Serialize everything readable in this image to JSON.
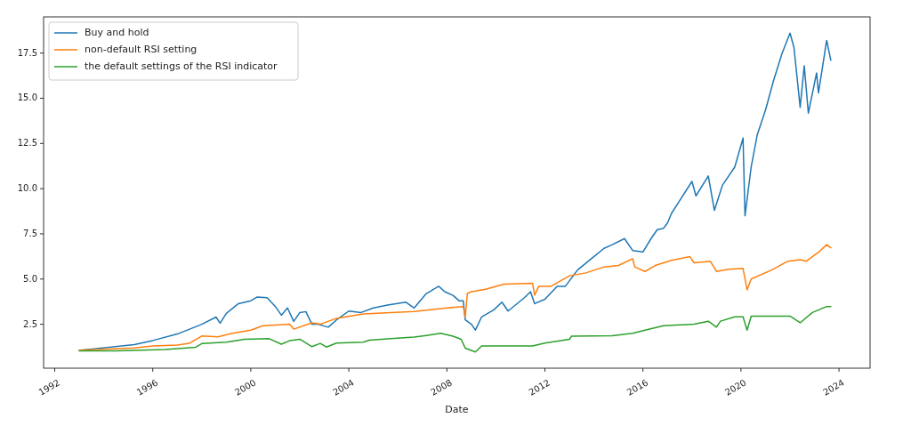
{
  "chart_data": {
    "type": "line",
    "xlabel": "Date",
    "legend": "top left",
    "grid": false,
    "line_style": "solid",
    "xlim": [
      "1991-07-19",
      "2025-04-08"
    ],
    "xticks": [
      "1992",
      "1996",
      "2000",
      "2004",
      "2008",
      "2012",
      "2016",
      "2020",
      "2024"
    ],
    "ylim": [
      0.07,
      19.5
    ],
    "yticks": [
      {
        "value": 2.5,
        "label": "2.5"
      },
      {
        "value": 5,
        "label": "5.0"
      },
      {
        "value": 7.5,
        "label": "7.5"
      },
      {
        "value": 10,
        "label": "10.0"
      },
      {
        "value": 12.5,
        "label": "12.5"
      },
      {
        "value": 15,
        "label": "15.0"
      },
      {
        "value": 17.5,
        "label": "17.5"
      }
    ],
    "series": [
      {
        "name": "Buy and hold",
        "color": "#1f77b4",
        "x": [
          "1993-01",
          "1995-04",
          "1996-01",
          "1997-01",
          "1998-01",
          "1998-08",
          "1998-10",
          "1999-01",
          "1999-07",
          "2000-01",
          "2000-04",
          "2000-09",
          "2001-01",
          "2001-04",
          "2001-07",
          "2001-10",
          "2002-01",
          "2002-04",
          "2002-07",
          "2002-10",
          "2003-03",
          "2003-07",
          "2004-01",
          "2004-07",
          "2005-01",
          "2005-08",
          "2006-05",
          "2006-09",
          "2007-03",
          "2007-09",
          "2007-12",
          "2008-04",
          "2008-07",
          "2008-09",
          "2008-10",
          "2009-01",
          "2009-03",
          "2009-06",
          "2009-12",
          "2010-04",
          "2010-07",
          "2011-03",
          "2011-06",
          "2011-08",
          "2012-01",
          "2012-07",
          "2012-11",
          "2013-05",
          "2013-12",
          "2014-06",
          "2014-10",
          "2015-04",
          "2015-08",
          "2016-01",
          "2016-05",
          "2016-08",
          "2016-11",
          "2017-01",
          "2017-03",
          "2018-01",
          "2018-03",
          "2018-09",
          "2018-12",
          "2019-04",
          "2019-10",
          "2020-02",
          "2020-03",
          "2020-06",
          "2020-09",
          "2021-01",
          "2021-05",
          "2021-09",
          "2022-01",
          "2022-03",
          "2022-06",
          "2022-08",
          "2022-10",
          "2023-02",
          "2023-03",
          "2023-07",
          "2023-09"
        ],
        "values": [
          1.06,
          1.37,
          1.6,
          1.96,
          2.5,
          2.9,
          2.56,
          3.1,
          3.64,
          3.8,
          4.0,
          3.97,
          3.48,
          3.0,
          3.4,
          2.66,
          3.15,
          3.2,
          2.5,
          2.5,
          2.34,
          2.74,
          3.23,
          3.15,
          3.4,
          3.56,
          3.72,
          3.4,
          4.2,
          4.6,
          4.3,
          4.1,
          3.8,
          3.8,
          2.74,
          2.5,
          2.18,
          2.9,
          3.3,
          3.72,
          3.23,
          3.97,
          4.3,
          3.64,
          3.88,
          4.6,
          4.6,
          5.5,
          6.15,
          6.7,
          6.9,
          7.24,
          6.58,
          6.5,
          7.24,
          7.73,
          7.8,
          8.1,
          8.63,
          10.4,
          9.6,
          10.7,
          8.8,
          10.2,
          11.2,
          12.8,
          8.5,
          11.2,
          13.0,
          14.35,
          15.98,
          17.45,
          18.6,
          17.8,
          14.5,
          16.8,
          14.18,
          16.4,
          15.3,
          18.2,
          17.1
        ]
      },
      {
        "name": "non-default RSI setting",
        "color": "#ff7f0e",
        "x": [
          "1993-01",
          "1995-04",
          "1996-01",
          "1997-01",
          "1997-07",
          "1998-01",
          "1998-09",
          "1999-04",
          "2000-01",
          "2000-07",
          "2001-08",
          "2001-10",
          "2002-07",
          "2002-11",
          "2003-07",
          "2004-08",
          "2006-09",
          "2008-01",
          "2008-09",
          "2008-10",
          "2008-11",
          "2009-01",
          "2009-08",
          "2010-05",
          "2011-07",
          "2011-08",
          "2011-10",
          "2012-04",
          "2013-01",
          "2013-09",
          "2014-06",
          "2015-01",
          "2015-08",
          "2015-09",
          "2016-02",
          "2016-07",
          "2017-03",
          "2017-12",
          "2018-02",
          "2018-10",
          "2019-01",
          "2019-07",
          "2020-02",
          "2020-04",
          "2020-06",
          "2021-04",
          "2021-12",
          "2022-06",
          "2022-09",
          "2023-03",
          "2023-07",
          "2023-09"
        ],
        "values": [
          1.06,
          1.19,
          1.3,
          1.35,
          1.45,
          1.85,
          1.8,
          2.0,
          2.17,
          2.42,
          2.5,
          2.23,
          2.58,
          2.5,
          2.83,
          3.07,
          3.2,
          3.4,
          3.48,
          2.9,
          4.2,
          4.3,
          4.44,
          4.72,
          4.77,
          4.11,
          4.6,
          4.6,
          5.18,
          5.34,
          5.67,
          5.75,
          6.13,
          5.67,
          5.42,
          5.75,
          6.03,
          6.24,
          5.9,
          5.99,
          5.42,
          5.54,
          5.59,
          4.4,
          5.0,
          5.5,
          5.99,
          6.07,
          5.99,
          6.48,
          6.9,
          6.73
        ]
      },
      {
        "name": "the default settings of the RSI indicator",
        "color": "#2ca02c",
        "x": [
          "1993-01",
          "1994-07",
          "1996-07",
          "1997-10",
          "1998-01",
          "1999-01",
          "1999-10",
          "2000-10",
          "2001-04",
          "2001-08",
          "2002-01",
          "2002-07",
          "2002-11",
          "2003-02",
          "2003-07",
          "2004-08",
          "2004-11",
          "2005-11",
          "2006-09",
          "2007-03",
          "2007-10",
          "2008-04",
          "2008-08",
          "2008-10",
          "2009-03",
          "2009-06",
          "2011-07",
          "2012-01",
          "2013-01",
          "2013-02",
          "2014-10",
          "2015-08",
          "2016-02",
          "2016-11",
          "2018-02",
          "2018-09",
          "2019-01",
          "2019-03",
          "2019-10",
          "2020-02",
          "2020-04",
          "2020-06",
          "2022-01",
          "2022-06",
          "2022-12",
          "2023-07",
          "2023-09"
        ],
        "values": [
          1.03,
          1.03,
          1.1,
          1.23,
          1.43,
          1.51,
          1.67,
          1.7,
          1.4,
          1.59,
          1.67,
          1.26,
          1.44,
          1.24,
          1.46,
          1.51,
          1.62,
          1.72,
          1.79,
          1.88,
          2.0,
          1.84,
          1.67,
          1.18,
          0.97,
          1.3,
          1.3,
          1.46,
          1.67,
          1.84,
          1.86,
          2.0,
          2.17,
          2.42,
          2.5,
          2.67,
          2.34,
          2.67,
          2.91,
          2.91,
          2.17,
          2.95,
          2.95,
          2.58,
          3.15,
          3.48,
          3.48
        ]
      }
    ]
  }
}
